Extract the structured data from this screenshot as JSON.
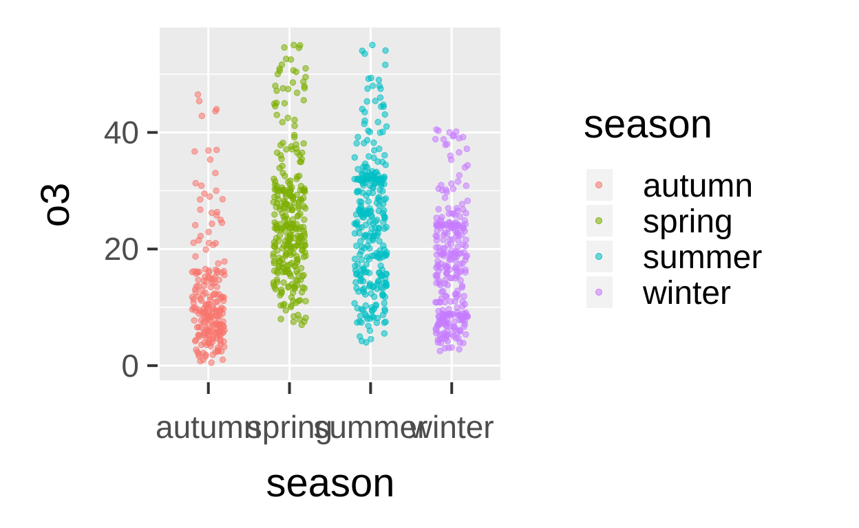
{
  "chart_data": {
    "type": "scatter",
    "subtype": "jitter",
    "xlabel": "season",
    "ylabel": "o3",
    "ylim": [
      -2.5,
      58
    ],
    "yticks": [
      0,
      20,
      40
    ],
    "categories": [
      "autumn",
      "spring",
      "summer",
      "winter"
    ],
    "grid": true,
    "panel_background": "#ebebeb",
    "point_alpha": 0.55,
    "legend": {
      "title": "season",
      "position": "right"
    },
    "series": [
      {
        "name": "autumn",
        "color": "#F8766D",
        "summary": {
          "min": 0.5,
          "q1": 6,
          "median": 10,
          "q3": 16,
          "max": 46.5,
          "n": 220
        },
        "notable_points": [
          46.5,
          37,
          30,
          29.5,
          29,
          28.5,
          25,
          24.5,
          1,
          0.5
        ]
      },
      {
        "name": "spring",
        "color": "#7CAE00",
        "summary": {
          "min": 7,
          "q1": 18,
          "median": 24,
          "q3": 30,
          "max": 55,
          "n": 300
        },
        "notable_points": [
          55,
          54.5,
          52.5,
          51,
          50,
          49.5,
          48,
          45,
          43,
          42.5,
          8,
          7.5,
          7
        ]
      },
      {
        "name": "summer",
        "color": "#00BFC4",
        "summary": {
          "min": 4,
          "q1": 16,
          "median": 25,
          "q3": 32,
          "max": 55,
          "n": 300
        },
        "notable_points": [
          55,
          54,
          49,
          48,
          47.5,
          44,
          43.5,
          42,
          41,
          6,
          5,
          4
        ]
      },
      {
        "name": "winter",
        "color": "#C77CFF",
        "summary": {
          "min": 2.5,
          "q1": 9,
          "median": 17,
          "q3": 24,
          "max": 40.5,
          "n": 290
        },
        "notable_points": [
          40.5,
          40,
          39.5,
          39,
          38,
          36,
          34,
          3,
          2.8,
          2.5
        ]
      }
    ]
  }
}
